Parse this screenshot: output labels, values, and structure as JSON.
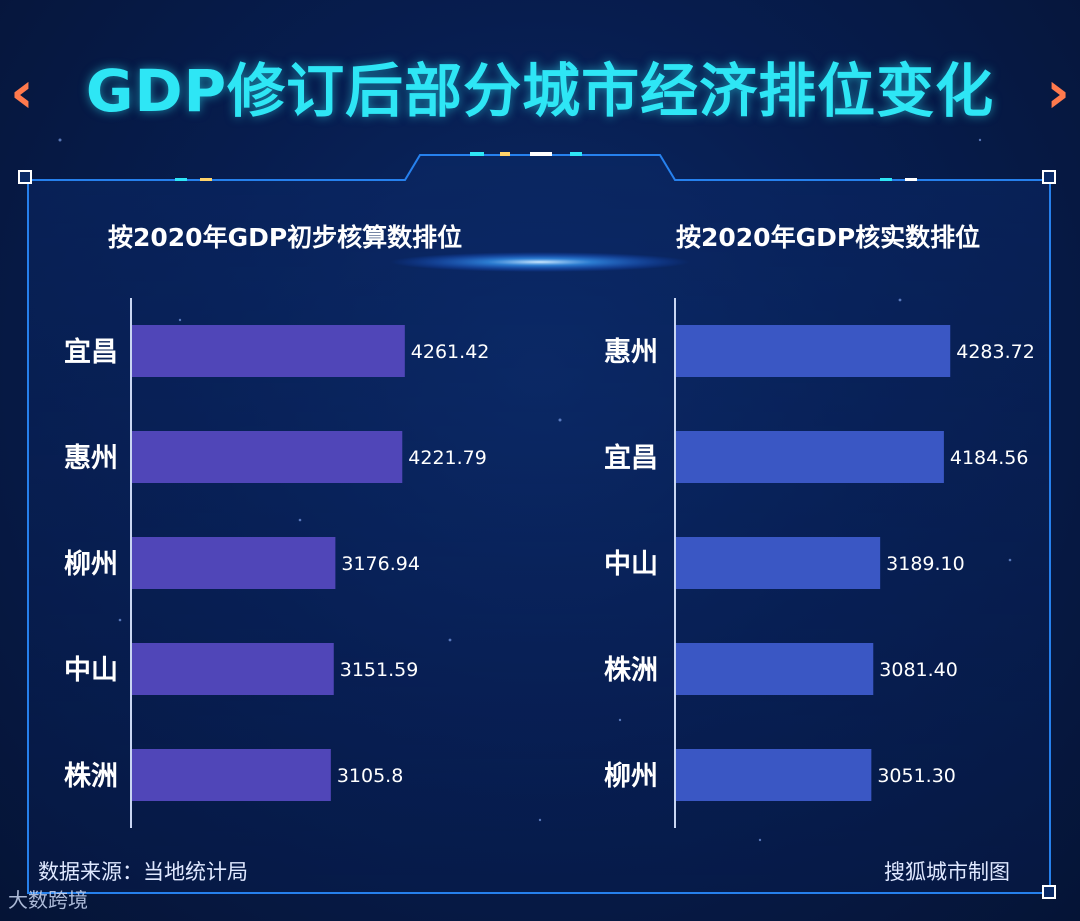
{
  "title": "GDP修订后部分城市经济排位变化",
  "colors": {
    "background": "#071d4f",
    "title": "#2ee6f5",
    "chevron": "#ff7a4d",
    "left_bar": "#5046b8",
    "right_bar": "#3a57c4",
    "frame": "#2a8cff"
  },
  "chart_data": [
    {
      "type": "bar",
      "orientation": "horizontal",
      "title": "按2020年GDP初步核算数排位",
      "categories": [
        "宜昌",
        "惠州",
        "柳州",
        "中山",
        "株洲"
      ],
      "values": [
        4261.42,
        4221.79,
        3176.94,
        3151.59,
        3105.8
      ],
      "value_labels": [
        "4261.42",
        "4221.79",
        "3176.94",
        "3151.59",
        "3105.8"
      ],
      "xlim": [
        0,
        4280
      ],
      "grid": false
    },
    {
      "type": "bar",
      "orientation": "horizontal",
      "title": "按2020年GDP核实数排位",
      "categories": [
        "惠州",
        "宜昌",
        "中山",
        "株洲",
        "柳州"
      ],
      "values": [
        4283.72,
        4184.56,
        3189.1,
        3081.4,
        3051.3
      ],
      "value_labels": [
        "4283.72",
        "4184.56",
        "3189.10",
        "3081.40",
        "3051.30"
      ],
      "xlim": [
        0,
        4280
      ],
      "grid": false
    }
  ],
  "footer": {
    "source": "数据来源：当地统计局",
    "credit": "搜狐城市制图"
  },
  "watermark": "大数跨境"
}
